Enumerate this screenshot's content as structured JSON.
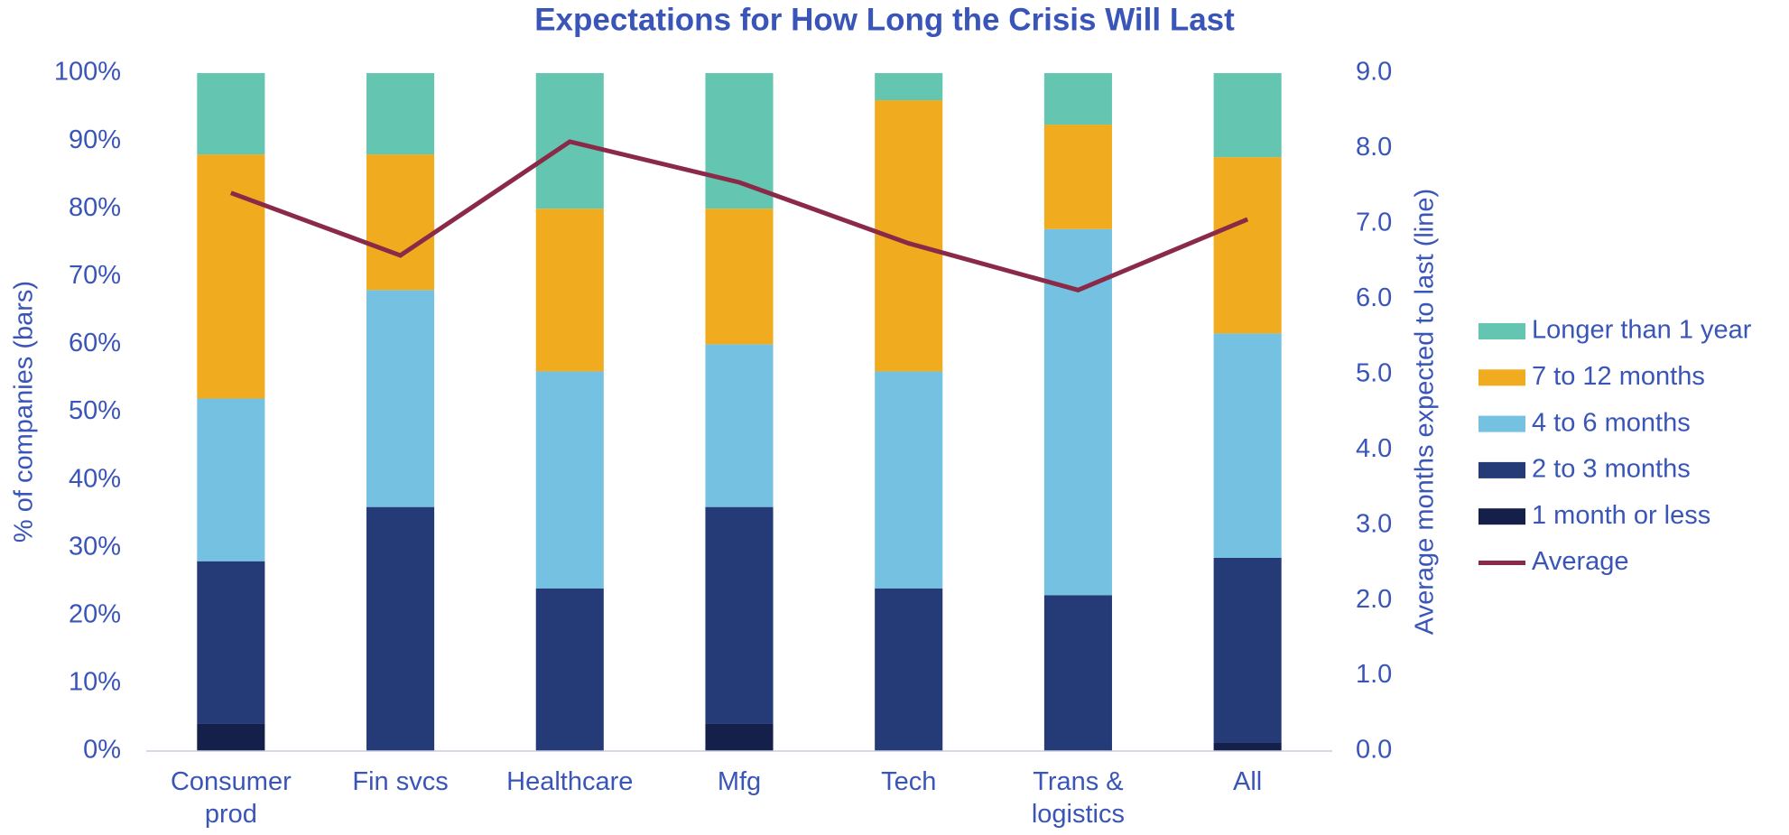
{
  "chart_data": {
    "type": "bar",
    "stacked": true,
    "title": "Expectations for How Long the Crisis Will Last",
    "ylabel": "% of companies (bars)",
    "y2label": "Average months expected to last (line)",
    "categories": [
      "Consumer prod",
      "Fin svcs",
      "Healthcare",
      "Mfg",
      "Tech",
      "Trans & logistics",
      "All"
    ],
    "series": [
      {
        "name": "1 month or less",
        "color": "#14204a",
        "values": [
          4,
          0,
          0,
          4,
          0,
          0,
          1.2
        ]
      },
      {
        "name": "2 to 3 months",
        "color": "#253b77",
        "values": [
          24,
          36,
          24,
          32,
          24,
          23,
          27.3
        ]
      },
      {
        "name": "4 to 6 months",
        "color": "#74c1e2",
        "values": [
          24,
          32,
          32,
          24,
          32,
          54,
          33.1
        ]
      },
      {
        "name": "7 to 12 months",
        "color": "#f0ac1e",
        "values": [
          36,
          20,
          24,
          20,
          40,
          15.4,
          26
        ]
      },
      {
        "name": "Longer than 1 year",
        "color": "#64c6b0",
        "values": [
          12,
          12,
          20,
          20,
          4,
          7.6,
          12.4
        ]
      },
      {
        "name": "Average",
        "color": "#8b2a48",
        "type": "line",
        "axis": "y2",
        "values": [
          7.41,
          6.58,
          8.09,
          7.55,
          6.74,
          6.12,
          7.06
        ]
      }
    ],
    "ylim": [
      0,
      100
    ],
    "yticks": [
      {
        "value": 0,
        "label": "0%"
      },
      {
        "value": 10,
        "label": "10%"
      },
      {
        "value": 20,
        "label": "20%"
      },
      {
        "value": 30,
        "label": "30%"
      },
      {
        "value": 40,
        "label": "40%"
      },
      {
        "value": 50,
        "label": "50%"
      },
      {
        "value": 60,
        "label": "60%"
      },
      {
        "value": 70,
        "label": "70%"
      },
      {
        "value": 80,
        "label": "80%"
      },
      {
        "value": 90,
        "label": "90%"
      },
      {
        "value": 100,
        "label": "100%"
      }
    ],
    "y2lim": [
      0,
      9
    ],
    "y2ticks": [
      {
        "value": 0,
        "label": "0.0"
      },
      {
        "value": 1,
        "label": "1.0"
      },
      {
        "value": 2,
        "label": "2.0"
      },
      {
        "value": 3,
        "label": "3.0"
      },
      {
        "value": 4,
        "label": "4.0"
      },
      {
        "value": 5,
        "label": "5.0"
      },
      {
        "value": 6,
        "label": "6.0"
      },
      {
        "value": 7,
        "label": "7.0"
      },
      {
        "value": 8,
        "label": "8.0"
      },
      {
        "value": 9,
        "label": "9.0"
      }
    ],
    "legend": "right"
  }
}
